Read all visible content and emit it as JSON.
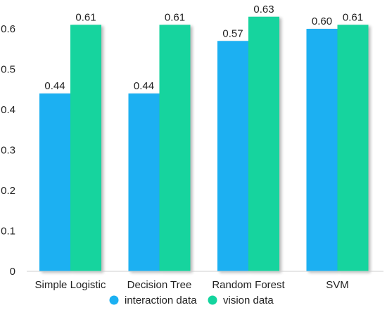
{
  "chart_data": {
    "type": "bar",
    "categories": [
      "Simple Logistic",
      "Decision Tree",
      "Random Forest",
      "SVM"
    ],
    "series": [
      {
        "name": "interaction data",
        "values": [
          0.44,
          0.44,
          0.57,
          0.6
        ],
        "labels": [
          "0.44",
          "0.44",
          "0.57",
          "0.60"
        ],
        "color": "#1BB0F2"
      },
      {
        "name": "vision data",
        "values": [
          0.61,
          0.61,
          0.63,
          0.61
        ],
        "labels": [
          "0.61",
          "0.61",
          "0.63",
          "0.61"
        ],
        "color": "#14D49E"
      }
    ],
    "title": "",
    "xlabel": "",
    "ylabel": "",
    "ylim": [
      0,
      0.65
    ],
    "yticks": [
      0,
      0.1,
      0.2,
      0.3,
      0.4,
      0.5,
      0.6
    ],
    "ytick_labels": [
      "0",
      "0.1",
      "0.2",
      "0.3",
      "0.4",
      "0.5",
      "0.6"
    ],
    "grid": false,
    "legend_position": "bottom-center",
    "bar_shadow": true
  }
}
